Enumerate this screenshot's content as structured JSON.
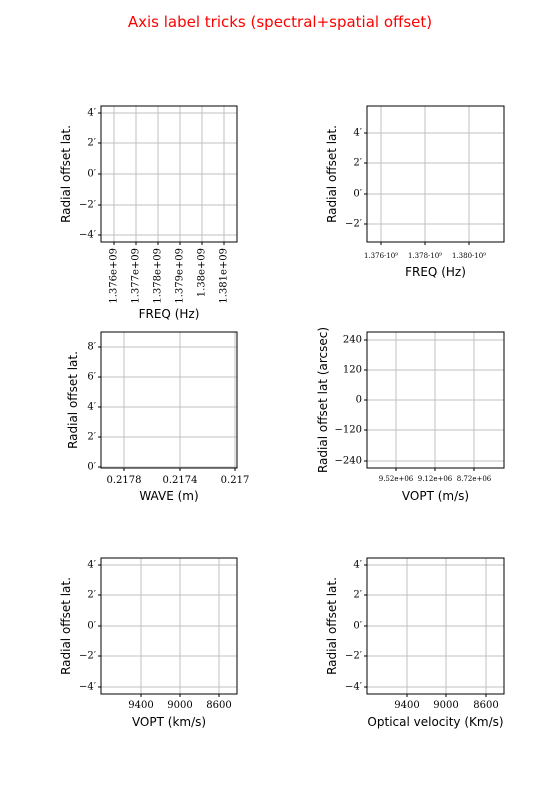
{
  "title": "Axis label tricks (spectral+spatial offset)",
  "colors": {
    "title": "#ff0000",
    "grid": "#c0c0c0",
    "frame": "#000000"
  },
  "chart_data": [
    {
      "type": "line",
      "grid": true,
      "xlabel": "FREQ (Hz)",
      "ylabel": "Radial offset lat.",
      "xticks": [
        "1.376e+09",
        "1.377e+09",
        "1.378e+09",
        "1.379e+09",
        "1.38e+09",
        "1.381e+09"
      ],
      "xtick_rotation": 90,
      "yticks": [
        "4′",
        "2′",
        "0′",
        "−2′",
        "−4′"
      ]
    },
    {
      "type": "line",
      "grid": true,
      "xlabel": "FREQ (Hz)",
      "ylabel": "Radial offset lat.",
      "xticks": [
        "1.376·10⁹",
        "1.378·10⁹",
        "1.380·10⁹"
      ],
      "yticks": [
        "4′",
        "2′",
        "0′",
        "−2′"
      ]
    },
    {
      "type": "line",
      "grid": true,
      "xlabel": "WAVE (m)",
      "ylabel": "Radial offset lat.",
      "xticks": [
        "0.2178",
        "0.2174",
        "0.217"
      ],
      "yticks": [
        "8′",
        "6′",
        "4′",
        "2′",
        "0′"
      ]
    },
    {
      "type": "line",
      "grid": true,
      "xlabel": "VOPT (m/s)",
      "ylabel": "Radial offset lat (arcsec)",
      "xticks": [
        "9.52e+06",
        "9.12e+06",
        "8.72e+06"
      ],
      "yticks": [
        "240",
        "120",
        "0",
        "−120",
        "−240"
      ]
    },
    {
      "type": "line",
      "grid": true,
      "xlabel": "VOPT (km/s)",
      "ylabel": "Radial offset lat.",
      "xticks": [
        "9400",
        "9000",
        "8600"
      ],
      "yticks": [
        "4′",
        "2′",
        "0′",
        "−2′",
        "−4′"
      ]
    },
    {
      "type": "line",
      "grid": true,
      "xlabel": "Optical velocity (Km/s)",
      "ylabel": "Radial offset lat.",
      "xticks": [
        "9400",
        "9000",
        "8600"
      ],
      "yticks": [
        "4′",
        "2′",
        "0′",
        "−2′",
        "−4′"
      ]
    }
  ]
}
